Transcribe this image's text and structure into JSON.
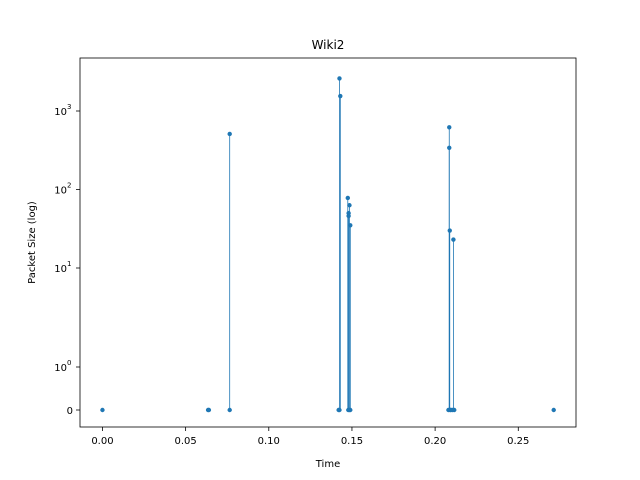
{
  "chart_data": {
    "type": "scatter",
    "style": "stem",
    "title": "Wiki2",
    "xlabel": "Time",
    "ylabel": "Packet Size (log)",
    "xlim": [
      -0.0135,
      0.2847
    ],
    "yscale": "symlog",
    "ylim_note": "symlog axis, ticks at 0, 1, 10, 100, 1000",
    "x_ticks": [
      "0.00",
      "0.05",
      "0.10",
      "0.15",
      "0.20",
      "0.25"
    ],
    "x_tick_values": [
      0.0,
      0.05,
      0.1,
      0.15,
      0.2,
      0.25
    ],
    "y_ticks": [
      {
        "value": 0,
        "base": "0",
        "exp": ""
      },
      {
        "value": 1,
        "base": "10",
        "exp": "0"
      },
      {
        "value": 10,
        "base": "10",
        "exp": "1"
      },
      {
        "value": 100,
        "base": "10",
        "exp": "2"
      },
      {
        "value": 1000,
        "base": "10",
        "exp": "3"
      }
    ],
    "color": "#1f77b4",
    "grid": false,
    "points": [
      {
        "x": 0.0,
        "y": 0
      },
      {
        "x": 0.0635,
        "y": 0
      },
      {
        "x": 0.064,
        "y": 0
      },
      {
        "x": 0.0765,
        "y": 0
      },
      {
        "x": 0.0765,
        "y": 510
      },
      {
        "x": 0.142,
        "y": 0
      },
      {
        "x": 0.1425,
        "y": 0
      },
      {
        "x": 0.1425,
        "y": 2600
      },
      {
        "x": 0.143,
        "y": 1550
      },
      {
        "x": 0.1475,
        "y": 78
      },
      {
        "x": 0.1478,
        "y": 0
      },
      {
        "x": 0.148,
        "y": 50
      },
      {
        "x": 0.148,
        "y": 46
      },
      {
        "x": 0.1485,
        "y": 63
      },
      {
        "x": 0.1485,
        "y": 0
      },
      {
        "x": 0.149,
        "y": 35
      },
      {
        "x": 0.149,
        "y": 0
      },
      {
        "x": 0.208,
        "y": 0
      },
      {
        "x": 0.2085,
        "y": 620
      },
      {
        "x": 0.2085,
        "y": 340
      },
      {
        "x": 0.2088,
        "y": 30
      },
      {
        "x": 0.209,
        "y": 0
      },
      {
        "x": 0.2095,
        "y": 0
      },
      {
        "x": 0.2105,
        "y": 0
      },
      {
        "x": 0.211,
        "y": 23
      },
      {
        "x": 0.2115,
        "y": 0
      },
      {
        "x": 0.2713,
        "y": 0
      }
    ]
  }
}
